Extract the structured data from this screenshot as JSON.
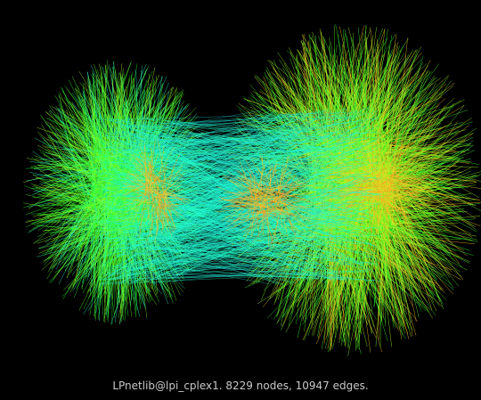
{
  "caption": "LPnetlib@lpi_cplex1. 8229 nodes, 10947 edges.",
  "graph": {
    "nodes": 8229,
    "edges": 10947,
    "background": "#000000",
    "edge_colors": [
      "#33ff33",
      "#66ff22",
      "#aaff22",
      "#ffcc22",
      "#ff9922",
      "#22ffcc",
      "#22dddd"
    ]
  }
}
